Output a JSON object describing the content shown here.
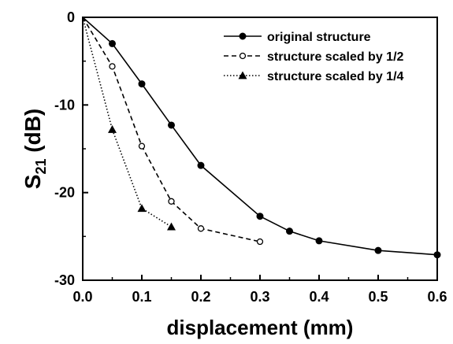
{
  "chart_data": {
    "type": "line",
    "xlabel": "displacement (mm)",
    "ylabel": {
      "main": "S",
      "sub": "21",
      "unit": " (dB)"
    },
    "xlim": [
      0.0,
      0.6
    ],
    "ylim": [
      -30,
      0
    ],
    "xticks": [
      "0.0",
      "0.1",
      "0.2",
      "0.3",
      "0.4",
      "0.5",
      "0.6"
    ],
    "yticks": [
      "0",
      "-10",
      "-20",
      "-30"
    ],
    "grid": false,
    "legend_position": "top-right",
    "series": [
      {
        "name": "original structure",
        "line_style": "solid",
        "marker": "filled-circle",
        "x": [
          0.0,
          0.05,
          0.1,
          0.15,
          0.2,
          0.3,
          0.35,
          0.4,
          0.5,
          0.6
        ],
        "y": [
          0.0,
          -3.0,
          -7.6,
          -12.3,
          -16.9,
          -22.7,
          -24.4,
          -25.5,
          -26.6,
          -27.1
        ]
      },
      {
        "name": "structure scaled by 1/2",
        "line_style": "dashed",
        "marker": "open-circle",
        "x": [
          0.0,
          0.05,
          0.1,
          0.15,
          0.2,
          0.3
        ],
        "y": [
          0.0,
          -5.6,
          -14.7,
          -21.0,
          -24.1,
          -25.6
        ]
      },
      {
        "name": "structure scaled by 1/4",
        "line_style": "dotted",
        "marker": "filled-triangle",
        "x": [
          0.0,
          0.05,
          0.1,
          0.15
        ],
        "y": [
          0.0,
          -12.8,
          -21.8,
          -23.9
        ]
      }
    ]
  }
}
